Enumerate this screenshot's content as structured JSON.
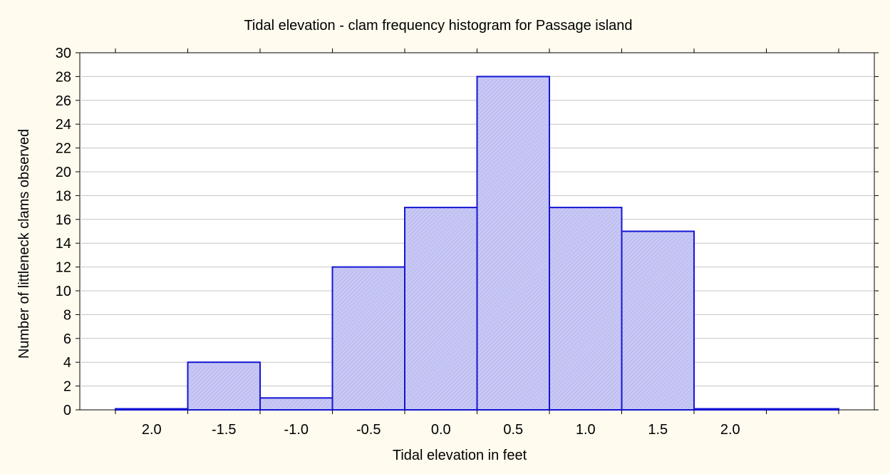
{
  "chart_data": {
    "type": "bar",
    "title": "Tidal elevation - clam frequency histogram for Passage island",
    "xlabel": "Tidal elevation in feet",
    "ylabel": "Number of littleneck clams observed",
    "ylim": [
      0,
      30
    ],
    "yticks": [
      0,
      2,
      4,
      6,
      8,
      10,
      12,
      14,
      16,
      18,
      20,
      22,
      24,
      26,
      28,
      30
    ],
    "categories": [
      "2.0",
      "-1.5",
      "-1.0",
      "-0.5",
      "0.0",
      "0.5",
      "1.0",
      "1.5",
      "2.0",
      ""
    ],
    "values": [
      0,
      4,
      1,
      12,
      17,
      28,
      17,
      15,
      0,
      0
    ],
    "grid": true,
    "colors": {
      "bar_fill": "#c8c8f4",
      "bar_stroke": "#1515d6",
      "background": "#fffbef",
      "plot_background": "#ffffff"
    }
  }
}
